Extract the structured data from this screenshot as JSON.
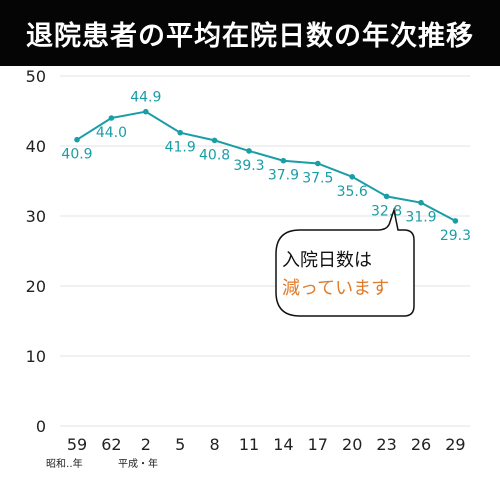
{
  "title": "退院患者の平均在院日数の年次推移",
  "colors": {
    "line": "#1a9ea6",
    "callout_highlight": "#e07b2a",
    "title_bg": "#050505"
  },
  "chart_data": {
    "type": "line",
    "categories": [
      "59",
      "62",
      "2",
      "5",
      "8",
      "11",
      "14",
      "17",
      "20",
      "23",
      "26",
      "29"
    ],
    "values": [
      40.9,
      44.0,
      44.9,
      41.9,
      40.8,
      39.3,
      37.9,
      37.5,
      35.6,
      32.8,
      31.9,
      29.3
    ],
    "value_labels": [
      "40.9",
      "44.0",
      "44.9",
      "41.9",
      "40.8",
      "39.3",
      "37.9",
      "37.5",
      "35.6",
      "32.8",
      "31.9",
      "29.3"
    ],
    "y_ticks": [
      "0",
      "10",
      "20",
      "30",
      "40",
      "50"
    ],
    "ylim": [
      0,
      50
    ],
    "era_labels": [
      "昭和‥年",
      "平成・年"
    ],
    "grid": true,
    "annotation": {
      "line1": "入院日数は",
      "line2": "減っています"
    }
  }
}
